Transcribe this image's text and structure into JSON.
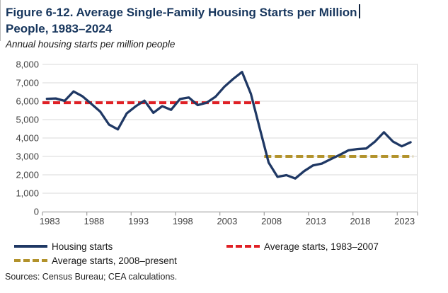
{
  "figure": {
    "title_line1": "Figure 6-12. Average Single-Family Housing Starts per Million",
    "title_line2": "People, 1983–2024",
    "subtitle": "Annual housing starts per million people",
    "sources": "Sources: Census Bureau; CEA calculations."
  },
  "legend": [
    {
      "label": "Housing starts",
      "style": "solid",
      "color": "#1f3864"
    },
    {
      "label": "Average starts, 1983–2007",
      "style": "dashed",
      "color": "#e02025"
    },
    {
      "label": "Average starts, 2008–present",
      "style": "dashed",
      "color": "#b2922b"
    }
  ],
  "chart_data": {
    "type": "line",
    "title": "Figure 6-12. Average Single-Family Housing Starts per Million People, 1983–2024",
    "subtitle": "Annual housing starts per million people",
    "xlabel": "",
    "ylabel": "Annual housing starts per million people",
    "ylim": [
      0,
      8000
    ],
    "ytick_step": 1000,
    "grid": "horizontal",
    "legend_position": "bottom",
    "xticks": [
      1983,
      1988,
      1993,
      1998,
      2003,
      2008,
      2013,
      2018,
      2023
    ],
    "x": [
      1983,
      1984,
      1985,
      1986,
      1987,
      1988,
      1989,
      1990,
      1991,
      1992,
      1993,
      1994,
      1995,
      1996,
      1997,
      1998,
      1999,
      2000,
      2001,
      2002,
      2003,
      2004,
      2005,
      2006,
      2007,
      2008,
      2009,
      2010,
      2011,
      2012,
      2013,
      2014,
      2015,
      2016,
      2017,
      2018,
      2019,
      2020,
      2021,
      2022,
      2023,
      2024
    ],
    "series": [
      {
        "name": "Housing starts",
        "style": "solid",
        "color": "#1f3864",
        "values": [
          6130,
          6150,
          6020,
          6530,
          6270,
          5860,
          5440,
          4730,
          4470,
          5340,
          5720,
          6030,
          5370,
          5730,
          5530,
          6120,
          6200,
          5790,
          5920,
          6240,
          6780,
          7210,
          7590,
          6400,
          4510,
          2660,
          1890,
          1980,
          1800,
          2200,
          2510,
          2610,
          2850,
          3080,
          3330,
          3400,
          3430,
          3810,
          4310,
          3810,
          3550,
          3770
        ]
      },
      {
        "name": "Average starts, 1983–2007",
        "style": "dashed",
        "color": "#e02025",
        "value": 5920,
        "x_start": 1982.5,
        "x_end": 2007
      },
      {
        "name": "Average starts, 2008–present",
        "style": "dashed",
        "color": "#b2922b",
        "value": 3000,
        "x_start": 2007.5,
        "x_end": 2024.3
      }
    ]
  }
}
